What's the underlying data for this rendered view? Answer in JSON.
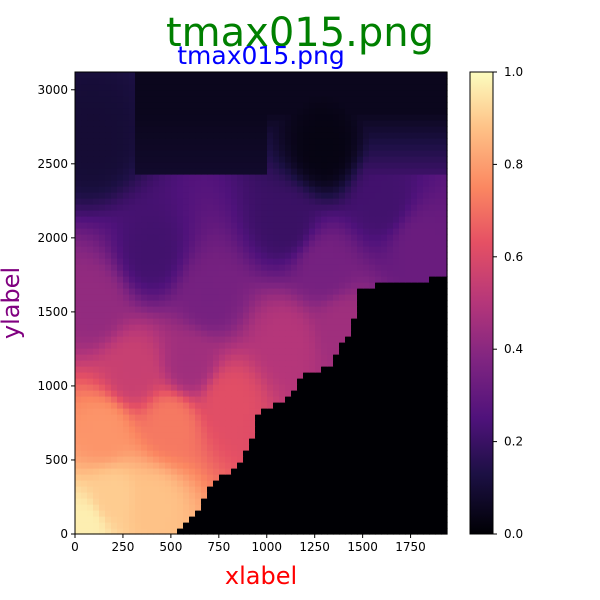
{
  "chart_data": {
    "type": "heatmap",
    "suptitle": "tmax015.png",
    "title": "tmax015.png",
    "xlabel": "xlabel",
    "ylabel": "ylabel",
    "xlim": [
      0,
      1940
    ],
    "ylim": [
      0,
      3120
    ],
    "xticks": [
      "0",
      "250",
      "500",
      "750",
      "1000",
      "1250",
      "1500",
      "1750"
    ],
    "xtick_values": [
      0,
      250,
      500,
      750,
      1000,
      1250,
      1500,
      1750
    ],
    "yticks": [
      "0",
      "500",
      "1000",
      "1500",
      "2000",
      "2500",
      "3000"
    ],
    "ytick_values": [
      0,
      500,
      1000,
      1500,
      2000,
      2500,
      3000
    ],
    "colorbar": {
      "cmap": "magma",
      "range": [
        0.0,
        1.0
      ],
      "ticks": [
        "0.0",
        "0.2",
        "0.4",
        "0.6",
        "0.8",
        "1.0"
      ],
      "tick_values": [
        0.0,
        0.2,
        0.4,
        0.6,
        0.8,
        1.0
      ]
    },
    "colors": {
      "suptitle": "#008000",
      "title": "#0000ff",
      "xlabel": "#ff0000",
      "ylabel": "#800080"
    },
    "description_points": [
      {
        "x": 50,
        "y": 50,
        "value": 0.97
      },
      {
        "x": 200,
        "y": 250,
        "value": 0.9
      },
      {
        "x": 400,
        "y": 200,
        "value": 0.88
      },
      {
        "x": 150,
        "y": 700,
        "value": 0.78
      },
      {
        "x": 500,
        "y": 750,
        "value": 0.72
      },
      {
        "x": 800,
        "y": 900,
        "value": 0.62
      },
      {
        "x": 300,
        "y": 1100,
        "value": 0.55
      },
      {
        "x": 600,
        "y": 1150,
        "value": 0.45
      },
      {
        "x": 1100,
        "y": 1300,
        "value": 0.5
      },
      {
        "x": 1400,
        "y": 1400,
        "value": 0.45
      },
      {
        "x": 100,
        "y": 1550,
        "value": 0.42
      },
      {
        "x": 700,
        "y": 1600,
        "value": 0.35
      },
      {
        "x": 1300,
        "y": 1800,
        "value": 0.35
      },
      {
        "x": 1800,
        "y": 1950,
        "value": 0.32
      },
      {
        "x": 400,
        "y": 1900,
        "value": 0.22
      },
      {
        "x": 1100,
        "y": 2100,
        "value": 0.2
      },
      {
        "x": 1600,
        "y": 2250,
        "value": 0.22
      },
      {
        "x": 100,
        "y": 2650,
        "value": 0.1
      },
      {
        "x": 1300,
        "y": 2600,
        "value": 0.03
      }
    ],
    "coastline": [
      [
        510,
        0
      ],
      [
        560,
        40
      ],
      [
        640,
        170
      ],
      [
        700,
        330
      ],
      [
        840,
        450
      ],
      [
        920,
        620
      ],
      [
        960,
        850
      ],
      [
        1100,
        900
      ],
      [
        1180,
        1060
      ],
      [
        1330,
        1150
      ],
      [
        1450,
        1400
      ],
      [
        1480,
        1670
      ],
      [
        1700,
        1700
      ],
      [
        1940,
        1740
      ]
    ]
  }
}
